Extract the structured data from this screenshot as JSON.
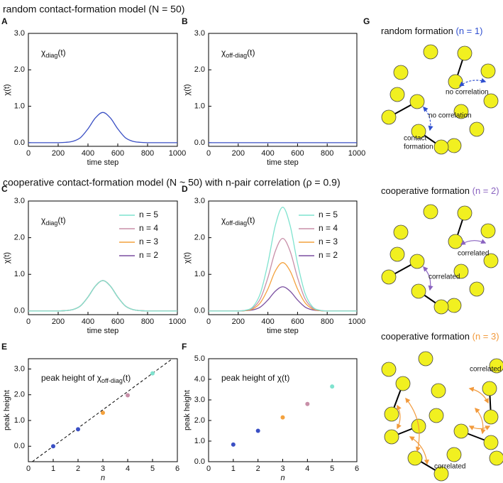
{
  "headings": [
    "random contact-formation model (N = 50)",
    "cooperative contact-formation model (N ~ 50) with n-pair correlation (ρ = 0.9)"
  ],
  "chart_data": [
    {
      "panel": "A",
      "type": "line",
      "x": [
        0,
        50,
        100,
        150,
        200,
        250,
        300,
        350,
        400,
        450,
        500,
        550,
        600,
        650,
        700,
        750,
        800,
        850,
        900,
        950,
        1000
      ],
      "values": [
        0,
        0,
        0,
        0,
        0,
        0.01,
        0.04,
        0.14,
        0.38,
        0.68,
        0.83,
        0.68,
        0.38,
        0.14,
        0.04,
        0.01,
        0,
        0,
        0,
        0,
        0
      ],
      "color": "#3a4fc4",
      "xlim": [
        0,
        1000
      ],
      "xticks": [
        0,
        200,
        400,
        600,
        800,
        1000
      ],
      "ylim": [
        -0.1,
        3.0
      ],
      "yticks": [
        {
          "value": 0,
          "label": "0.0"
        },
        {
          "value": 1,
          "label": "1.0"
        },
        {
          "value": 2,
          "label": "2.0"
        },
        {
          "value": 3,
          "label": "3.0"
        }
      ],
      "xlabel": "time step",
      "ylabel": "χ(t)",
      "annotation": {
        "symbol": "χ",
        "subscript": "diag",
        "argument": "(t)"
      }
    },
    {
      "panel": "B",
      "type": "line",
      "x": [
        0,
        50,
        100,
        150,
        200,
        250,
        300,
        350,
        400,
        450,
        500,
        550,
        600,
        650,
        700,
        750,
        800,
        850,
        900,
        950,
        1000
      ],
      "values": [
        0,
        0,
        0,
        0,
        0,
        0,
        0,
        0,
        0,
        0,
        0,
        0,
        0,
        0,
        0,
        0,
        0,
        0,
        0,
        0,
        0
      ],
      "color": "#3a4fc4",
      "xlim": [
        0,
        1000
      ],
      "xticks": [
        0,
        200,
        400,
        600,
        800,
        1000
      ],
      "ylim": [
        -0.1,
        3.0
      ],
      "yticks": [
        {
          "value": 0,
          "label": "0.0"
        },
        {
          "value": 1,
          "label": "1.0"
        },
        {
          "value": 2,
          "label": "2.0"
        },
        {
          "value": 3,
          "label": "3.0"
        }
      ],
      "xlabel": "time step",
      "ylabel": "χ(t)",
      "annotation": {
        "symbol": "χ",
        "subscript": "off-diag",
        "argument": "(t)"
      }
    },
    {
      "panel": "C",
      "type": "line",
      "x": [
        0,
        50,
        100,
        150,
        200,
        250,
        300,
        350,
        400,
        450,
        500,
        550,
        600,
        650,
        700,
        750,
        800,
        850,
        900,
        950,
        1000
      ],
      "series": [
        {
          "name": "n = 5",
          "color": "#7fe3cf",
          "values": [
            0,
            0,
            0,
            0,
            0,
            0.01,
            0.04,
            0.14,
            0.38,
            0.68,
            0.83,
            0.68,
            0.38,
            0.14,
            0.04,
            0.01,
            0,
            0,
            0,
            0,
            0
          ]
        },
        {
          "name": "n = 4",
          "color": "#c88fa8",
          "values": [
            0,
            0,
            0,
            0,
            0,
            0.01,
            0.04,
            0.14,
            0.38,
            0.68,
            0.83,
            0.68,
            0.38,
            0.14,
            0.04,
            0.01,
            0,
            0,
            0,
            0,
            0
          ]
        },
        {
          "name": "n = 3",
          "color": "#f4a23e",
          "values": [
            0,
            0,
            0,
            0,
            0,
            0.01,
            0.04,
            0.14,
            0.38,
            0.68,
            0.83,
            0.68,
            0.38,
            0.14,
            0.04,
            0.01,
            0,
            0,
            0,
            0,
            0
          ]
        },
        {
          "name": "n = 2",
          "color": "#7a4fa0",
          "values": [
            0,
            0,
            0,
            0,
            0,
            0.01,
            0.04,
            0.14,
            0.38,
            0.68,
            0.83,
            0.68,
            0.38,
            0.14,
            0.04,
            0.01,
            0,
            0,
            0,
            0,
            0
          ]
        }
      ],
      "xlim": [
        0,
        1000
      ],
      "xticks": [
        0,
        200,
        400,
        600,
        800,
        1000
      ],
      "ylim": [
        -0.1,
        3.0
      ],
      "yticks": [
        {
          "value": 0,
          "label": "0.0"
        },
        {
          "value": 1,
          "label": "1.0"
        },
        {
          "value": 2,
          "label": "2.0"
        },
        {
          "value": 3,
          "label": "3.0"
        }
      ],
      "xlabel": "time step",
      "ylabel": "χ(t)",
      "annotation": {
        "symbol": "χ",
        "subscript": "diag",
        "argument": "(t)"
      },
      "legend": "upper right"
    },
    {
      "panel": "D",
      "type": "line",
      "x": [
        0,
        50,
        100,
        150,
        200,
        250,
        300,
        350,
        400,
        450,
        500,
        550,
        600,
        650,
        700,
        750,
        800,
        850,
        900,
        950,
        1000
      ],
      "series": [
        {
          "name": "n = 5",
          "color": "#7fe3cf",
          "values": [
            0,
            0,
            0,
            0,
            0,
            0.02,
            0.12,
            0.49,
            1.3,
            2.33,
            2.83,
            2.33,
            1.3,
            0.49,
            0.12,
            0.02,
            0,
            0,
            0,
            0,
            0
          ]
        },
        {
          "name": "n = 4",
          "color": "#c88fa8",
          "values": [
            0,
            0,
            0,
            0,
            0,
            0.02,
            0.09,
            0.34,
            0.91,
            1.63,
            1.98,
            1.63,
            0.91,
            0.34,
            0.09,
            0.02,
            0,
            0,
            0,
            0,
            0
          ]
        },
        {
          "name": "n = 3",
          "color": "#f4a23e",
          "values": [
            0,
            0,
            0,
            0,
            0,
            0.01,
            0.06,
            0.23,
            0.6,
            1.09,
            1.32,
            1.09,
            0.6,
            0.23,
            0.06,
            0.01,
            0,
            0,
            0,
            0,
            0
          ]
        },
        {
          "name": "n = 2",
          "color": "#7a4fa0",
          "values": [
            0,
            0,
            0,
            0,
            0,
            0.01,
            0.03,
            0.11,
            0.3,
            0.54,
            0.66,
            0.54,
            0.3,
            0.11,
            0.03,
            0.01,
            0,
            0,
            0,
            0,
            0
          ]
        }
      ],
      "xlim": [
        0,
        1000
      ],
      "xticks": [
        0,
        200,
        400,
        600,
        800,
        1000
      ],
      "ylim": [
        -0.1,
        3.0
      ],
      "yticks": [
        {
          "value": 0,
          "label": "0.0"
        },
        {
          "value": 1,
          "label": "1.0"
        },
        {
          "value": 2,
          "label": "2.0"
        },
        {
          "value": 3,
          "label": "3.0"
        }
      ],
      "xlabel": "time step",
      "ylabel": "χ(t)",
      "annotation": {
        "symbol": "χ",
        "subscript": "off-diag",
        "argument": "(t)"
      },
      "legend": "upper right"
    },
    {
      "panel": "E",
      "type": "scatter",
      "x": [
        1,
        2,
        3,
        4,
        5
      ],
      "values": [
        0,
        0.66,
        1.3,
        1.98,
        2.83
      ],
      "colors": [
        "#3a4fc4",
        "#3a4fc4",
        "#f4a23e",
        "#c88fa8",
        "#7fe3cf"
      ],
      "xlim": [
        0,
        6
      ],
      "xticks": [
        0,
        1,
        2,
        3,
        4,
        5,
        6
      ],
      "ylim": [
        -0.6,
        3.4
      ],
      "yticks": [
        {
          "value": 0,
          "label": "0.0"
        },
        {
          "value": 1,
          "label": "1.0"
        },
        {
          "value": 2,
          "label": "2.0"
        },
        {
          "value": 3,
          "label": "3.0"
        }
      ],
      "xlabel": "n",
      "ylabel": "peak height",
      "annotation": {
        "prefix": "peak height of ",
        "symbol": "χ",
        "subscript": "off-diag",
        "argument": "(t)"
      },
      "reference_line": {
        "x": [
          0,
          6
        ],
        "values": [
          -0.71,
          3.54
        ],
        "color": "#000000",
        "dash": true
      }
    },
    {
      "panel": "F",
      "type": "scatter",
      "x": [
        1,
        2,
        3,
        4,
        5
      ],
      "values": [
        0.83,
        1.5,
        2.15,
        2.8,
        3.65
      ],
      "colors": [
        "#3a4fc4",
        "#3a4fc4",
        "#f4a23e",
        "#c88fa8",
        "#7fe3cf"
      ],
      "xlim": [
        0,
        6
      ],
      "xticks": [
        0,
        1,
        2,
        3,
        4,
        5,
        6
      ],
      "ylim": [
        0,
        5
      ],
      "yticks": [
        {
          "value": 0,
          "label": "0.0"
        },
        {
          "value": 1,
          "label": "1.0"
        },
        {
          "value": 2,
          "label": "2.0"
        },
        {
          "value": 3,
          "label": "3.0"
        },
        {
          "value": 4,
          "label": "4.0"
        },
        {
          "value": 5,
          "label": "5.0"
        }
      ],
      "xlabel": "n",
      "ylabel": "peak height",
      "annotation": {
        "prefix": "peak height of ",
        "symbol": "χ",
        "argument": "(t)"
      }
    }
  ],
  "diagram": {
    "panel": "G",
    "sections": [
      {
        "title": "random formation ",
        "title_note": "(n = 1)",
        "color": "#2f4fd0",
        "dashed": true,
        "labels": [
          "no correlation",
          "no correlation"
        ],
        "note": [
          "contact",
          "formation"
        ]
      },
      {
        "title": "cooperative formation ",
        "title_note": "(n = 2)",
        "color": "#8a63c0",
        "dashed": false,
        "labels": [
          "correlated",
          "correlated"
        ]
      },
      {
        "title": "cooperative formation ",
        "title_note": "(n = 3)",
        "color": "#f29a3c",
        "dashed": false,
        "labels": [
          "correlated",
          "correlated"
        ]
      }
    ]
  }
}
